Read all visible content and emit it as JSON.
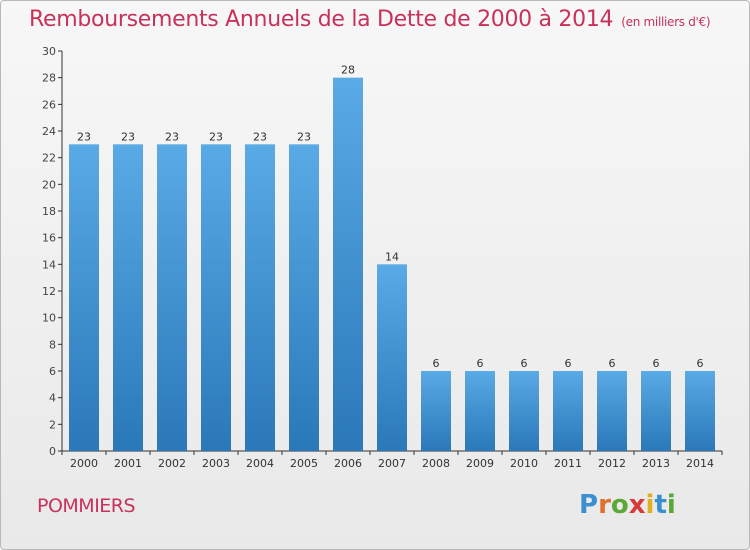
{
  "page": {
    "title": "Remboursements Annuels de la Dette de 2000 à 2014",
    "unit": "(en milliers d'€)",
    "commune": "POMMIERS",
    "logo": "Proxiti"
  },
  "colors": {
    "title": "#c8325a",
    "bar_light": "#5aaae6",
    "bar_dark": "#2a78b8",
    "axis": "#333333"
  },
  "logo_letters": [
    {
      "ch": "P",
      "color": "#3a8fd0"
    },
    {
      "ch": "r",
      "color": "#e07030"
    },
    {
      "ch": "o",
      "color": "#5aa838"
    },
    {
      "ch": "x",
      "color": "#d83a3a"
    },
    {
      "ch": "i",
      "color": "#e0b020"
    },
    {
      "ch": "t",
      "color": "#3a8fd0"
    },
    {
      "ch": "i",
      "color": "#5aa838"
    }
  ],
  "chart_data": {
    "type": "bar",
    "categories": [
      "2000",
      "2001",
      "2002",
      "2003",
      "2004",
      "2005",
      "2006",
      "2007",
      "2008",
      "2009",
      "2010",
      "2011",
      "2012",
      "2013",
      "2014"
    ],
    "values": [
      23,
      23,
      23,
      23,
      23,
      23,
      28,
      14,
      6,
      6,
      6,
      6,
      6,
      6,
      6
    ],
    "ylim": [
      0,
      30
    ],
    "yticks": [
      0,
      2,
      4,
      6,
      8,
      10,
      12,
      14,
      16,
      18,
      20,
      22,
      24,
      26,
      28,
      30
    ],
    "grid": false,
    "legend": "none"
  }
}
